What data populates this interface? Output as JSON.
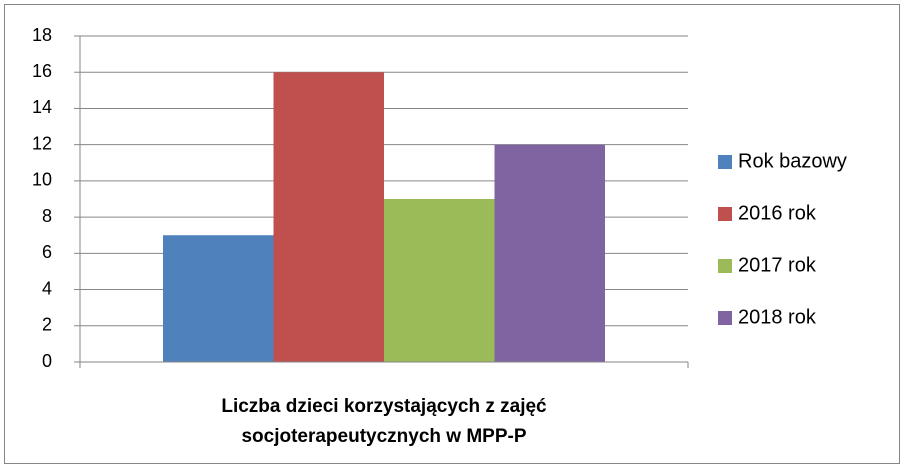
{
  "chart_data": {
    "type": "bar",
    "categories": [
      "Liczba dzieci korzystających z zajęć socjoterapeutycznych w MPP-P"
    ],
    "series": [
      {
        "name": "Rok bazowy",
        "color": "#4f81bd",
        "values": [
          7
        ]
      },
      {
        "name": "2016 rok",
        "color": "#c0504d",
        "values": [
          16
        ]
      },
      {
        "name": "2017 rok",
        "color": "#9bbb59",
        "values": [
          9
        ]
      },
      {
        "name": "2018 rok",
        "color": "#8064a2",
        "values": [
          12
        ]
      }
    ],
    "ylim": [
      0,
      18
    ],
    "yticks": [
      0,
      2,
      4,
      6,
      8,
      10,
      12,
      14,
      16,
      18
    ],
    "grid": true,
    "legend": "right"
  }
}
